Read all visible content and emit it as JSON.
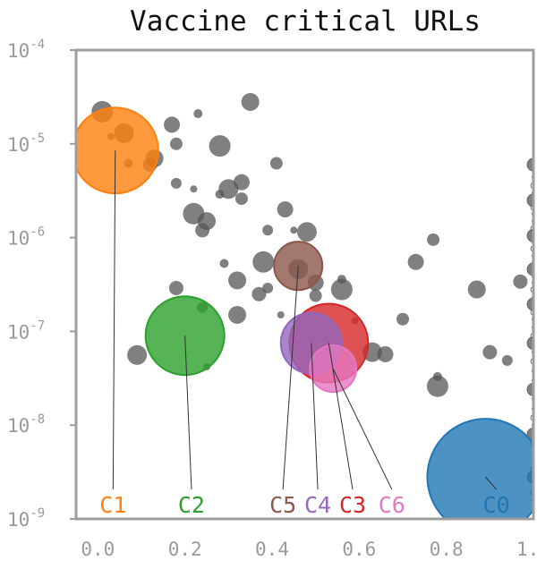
{
  "chart_data": {
    "type": "scatter",
    "title": "Vaccine critical URLs",
    "xlabel": "",
    "ylabel": "",
    "y_scale": "log",
    "xlim": [
      -0.05,
      1.0
    ],
    "ylim": [
      1e-09,
      0.0001
    ],
    "x_ticks": [
      "0.0",
      "0.2",
      "0.4",
      "0.6",
      "0.8",
      "1.0"
    ],
    "y_ticks": [
      {
        "base": "10",
        "exp": "-9"
      },
      {
        "base": "10",
        "exp": "-8"
      },
      {
        "base": "10",
        "exp": "-7"
      },
      {
        "base": "10",
        "exp": "-6"
      },
      {
        "base": "10",
        "exp": "-5"
      },
      {
        "base": "10",
        "exp": "-4"
      }
    ],
    "grid": false,
    "clusters": [
      {
        "name": "C0",
        "x": 0.89,
        "y": 2.8e-09,
        "label_x": 0.88,
        "color": "#1f77b4"
      },
      {
        "name": "C1",
        "x": 0.04,
        "y": 8.5e-06,
        "label_x": 0.0,
        "color": "#ff7f0e"
      },
      {
        "name": "C2",
        "x": 0.2,
        "y": 9e-08,
        "label_x": 0.18,
        "color": "#2ca02c"
      },
      {
        "name": "C3",
        "x": 0.53,
        "y": 7.5e-08,
        "label_x": 0.55,
        "color": "#d62728"
      },
      {
        "name": "C4",
        "x": 0.49,
        "y": 7.5e-08,
        "label_x": 0.47,
        "color": "#9467bd"
      },
      {
        "name": "C5",
        "x": 0.46,
        "y": 5e-07,
        "label_x": 0.39,
        "color": "#8c564b"
      },
      {
        "name": "C6",
        "x": 0.54,
        "y": 4e-08,
        "label_x": 0.64,
        "color": "#e377c2"
      }
    ],
    "points": [
      {
        "x": 0.03,
        "y": 1.2e-05
      },
      {
        "x": 0.06,
        "y": 1.3e-05
      },
      {
        "x": 0.17,
        "y": 1.6e-05
      },
      {
        "x": 0.18,
        "y": 1e-05
      },
      {
        "x": 0.23,
        "y": 2.1e-05
      },
      {
        "x": 0.28,
        "y": 9.5e-06
      },
      {
        "x": 0.35,
        "y": 2.8e-05
      },
      {
        "x": 0.12,
        "y": 6e-06
      },
      {
        "x": 0.18,
        "y": 3.8e-06
      },
      {
        "x": 0.22,
        "y": 3.3e-06
      },
      {
        "x": 0.3,
        "y": 3.3e-06
      },
      {
        "x": 0.33,
        "y": 3.9e-06
      },
      {
        "x": 0.33,
        "y": 2.6e-06
      },
      {
        "x": 0.28,
        "y": 2.9e-06
      },
      {
        "x": 0.22,
        "y": 1.8e-06
      },
      {
        "x": 0.25,
        "y": 1.5e-06
      },
      {
        "x": 0.24,
        "y": 1.2e-06
      },
      {
        "x": 0.39,
        "y": 1.2e-06
      },
      {
        "x": 0.45,
        "y": 1.2e-06
      },
      {
        "x": 0.48,
        "y": 1.15e-06
      },
      {
        "x": 0.43,
        "y": 2e-06
      },
      {
        "x": 0.41,
        "y": 6.2e-06
      },
      {
        "x": 0.29,
        "y": 5.3e-07
      },
      {
        "x": 0.38,
        "y": 5.5e-07
      },
      {
        "x": 0.32,
        "y": 3.5e-07
      },
      {
        "x": 0.37,
        "y": 2.5e-07
      },
      {
        "x": 0.39,
        "y": 2.9e-07
      },
      {
        "x": 0.42,
        "y": 1.5e-07
      },
      {
        "x": 0.46,
        "y": 4.6e-07
      },
      {
        "x": 0.5,
        "y": 3.3e-07
      },
      {
        "x": 0.5,
        "y": 2.4e-07
      },
      {
        "x": 0.56,
        "y": 3.6e-07
      },
      {
        "x": 0.56,
        "y": 2.8e-07
      },
      {
        "x": 0.32,
        "y": 1.5e-07
      },
      {
        "x": 0.18,
        "y": 2.9e-07
      },
      {
        "x": 0.24,
        "y": 1.8e-07
      },
      {
        "x": 0.59,
        "y": 1.3e-07
      },
      {
        "x": 0.63,
        "y": 6e-08
      },
      {
        "x": 0.66,
        "y": 5.7e-08
      },
      {
        "x": 0.7,
        "y": 1.35e-07
      },
      {
        "x": 0.78,
        "y": 3.3e-08
      },
      {
        "x": 0.78,
        "y": 2.6e-08
      },
      {
        "x": 0.87,
        "y": 2.8e-07
      },
      {
        "x": 0.9,
        "y": 6e-08
      },
      {
        "x": 0.94,
        "y": 4.9e-08
      },
      {
        "x": 0.25,
        "y": 4.2e-08
      },
      {
        "x": 0.09,
        "y": 5.6e-08
      },
      {
        "x": 0.73,
        "y": 5.5e-07
      },
      {
        "x": 0.77,
        "y": 9.5e-07
      },
      {
        "x": 0.07,
        "y": 6.2e-06
      },
      {
        "x": 0.01,
        "y": 2.2e-05
      },
      {
        "x": 0.13,
        "y": 7e-06
      },
      {
        "x": 0.97,
        "y": 3.4e-07
      }
    ],
    "column_points_x": 1.0,
    "column_points_y": [
      6e-06,
      5.2e-06,
      4.4e-06,
      3.6e-06,
      3e-06,
      2.5e-06,
      2.1e-06,
      1.8e-06,
      1.5e-06,
      1.25e-06,
      1.05e-06,
      9e-07,
      7.6e-07,
      6.4e-07,
      5.4e-07,
      4.6e-07,
      3.9e-07,
      3.3e-07,
      2.8e-07,
      2.3e-07,
      1.95e-07,
      1.6e-07,
      1.35e-07,
      1.1e-07,
      9e-08,
      7.5e-08,
      6e-08,
      4.8e-08,
      3.8e-08,
      3e-08,
      2.4e-08,
      1.9e-08,
      1.5e-08,
      1.2e-08,
      1e-08,
      8e-09,
      6.5e-09,
      5.2e-09,
      4.2e-09,
      3.4e-09,
      2.8e-09,
      2.3e-09,
      1.9e-09,
      1.6e-09,
      1.3e-09
    ]
  }
}
